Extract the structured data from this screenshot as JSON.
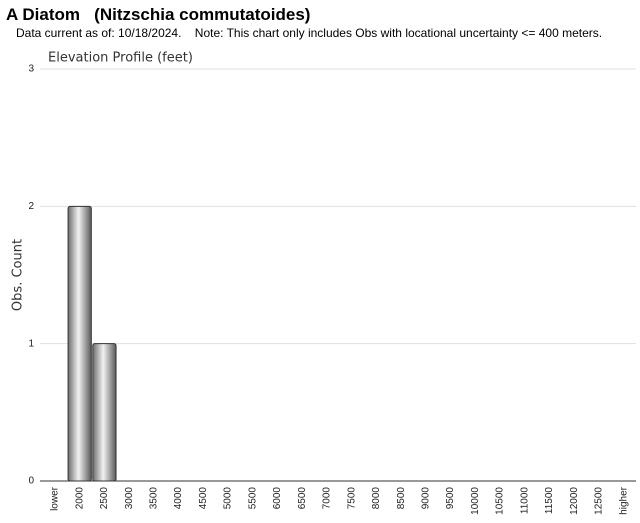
{
  "header": {
    "title": "A Diatom   (Nitzschia commutatoides)",
    "subtitle": "Data current as of: 10/18/2024.    Note: This chart only includes Obs with locational uncertainty <= 400 meters."
  },
  "chart_data": {
    "type": "bar",
    "title": "Elevation Profile (feet)",
    "y_label": "Obs. Count",
    "categories": [
      "lower",
      "2000",
      "2500",
      "3000",
      "3500",
      "4000",
      "4500",
      "5000",
      "5500",
      "6000",
      "6500",
      "7000",
      "7500",
      "8000",
      "8500",
      "9000",
      "9500",
      "10000",
      "10500",
      "11000",
      "11500",
      "12000",
      "12500",
      "higher"
    ],
    "values": [
      0,
      2,
      1,
      0,
      0,
      0,
      0,
      0,
      0,
      0,
      0,
      0,
      0,
      0,
      0,
      0,
      0,
      0,
      0,
      0,
      0,
      0,
      0,
      0
    ],
    "color": "#a9a9a9",
    "ylim": [
      0,
      3
    ],
    "yticks": [
      0,
      1,
      2,
      3
    ],
    "grid": true
  }
}
